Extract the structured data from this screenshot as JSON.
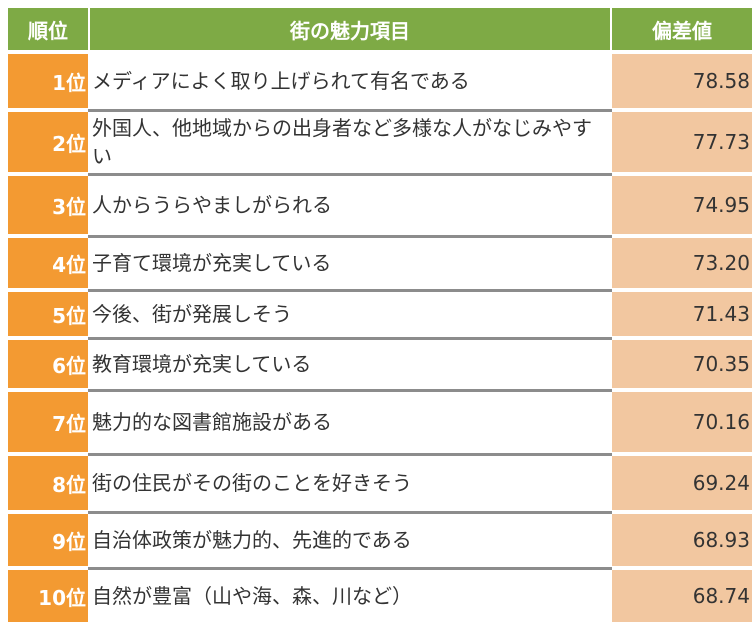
{
  "header": {
    "rank": "順位",
    "item": "街の魅力項目",
    "score": "偏差値"
  },
  "rows": [
    {
      "rank": "1位",
      "item": "メディアによく取り上げられて有名である",
      "score": "78.58"
    },
    {
      "rank": "2位",
      "item": "外国人、他地域からの出身者など多様な人がなじみやすい",
      "score": "77.73"
    },
    {
      "rank": "3位",
      "item": "人からうらやましがられる",
      "score": "74.95"
    },
    {
      "rank": "4位",
      "item": "子育て環境が充実している",
      "score": "73.20"
    },
    {
      "rank": "5位",
      "item": "今後、街が発展しそう",
      "score": "71.43"
    },
    {
      "rank": "6位",
      "item": "教育環境が充実している",
      "score": "70.35"
    },
    {
      "rank": "7位",
      "item": "魅力的な図書館施設がある",
      "score": "70.16"
    },
    {
      "rank": "8位",
      "item": "街の住民がその街のことを好きそう",
      "score": "69.24"
    },
    {
      "rank": "9位",
      "item": "自治体政策が魅力的、先進的である",
      "score": "68.93"
    },
    {
      "rank": "10位",
      "item": "自然が豊富（山や海、森、川など）",
      "score": "68.74"
    }
  ],
  "colors": {
    "header_bg": "#7eaa45",
    "rank_bg": "#f39a32",
    "score_bg": "#f2c7a0",
    "separator": "#8c8c8c"
  }
}
